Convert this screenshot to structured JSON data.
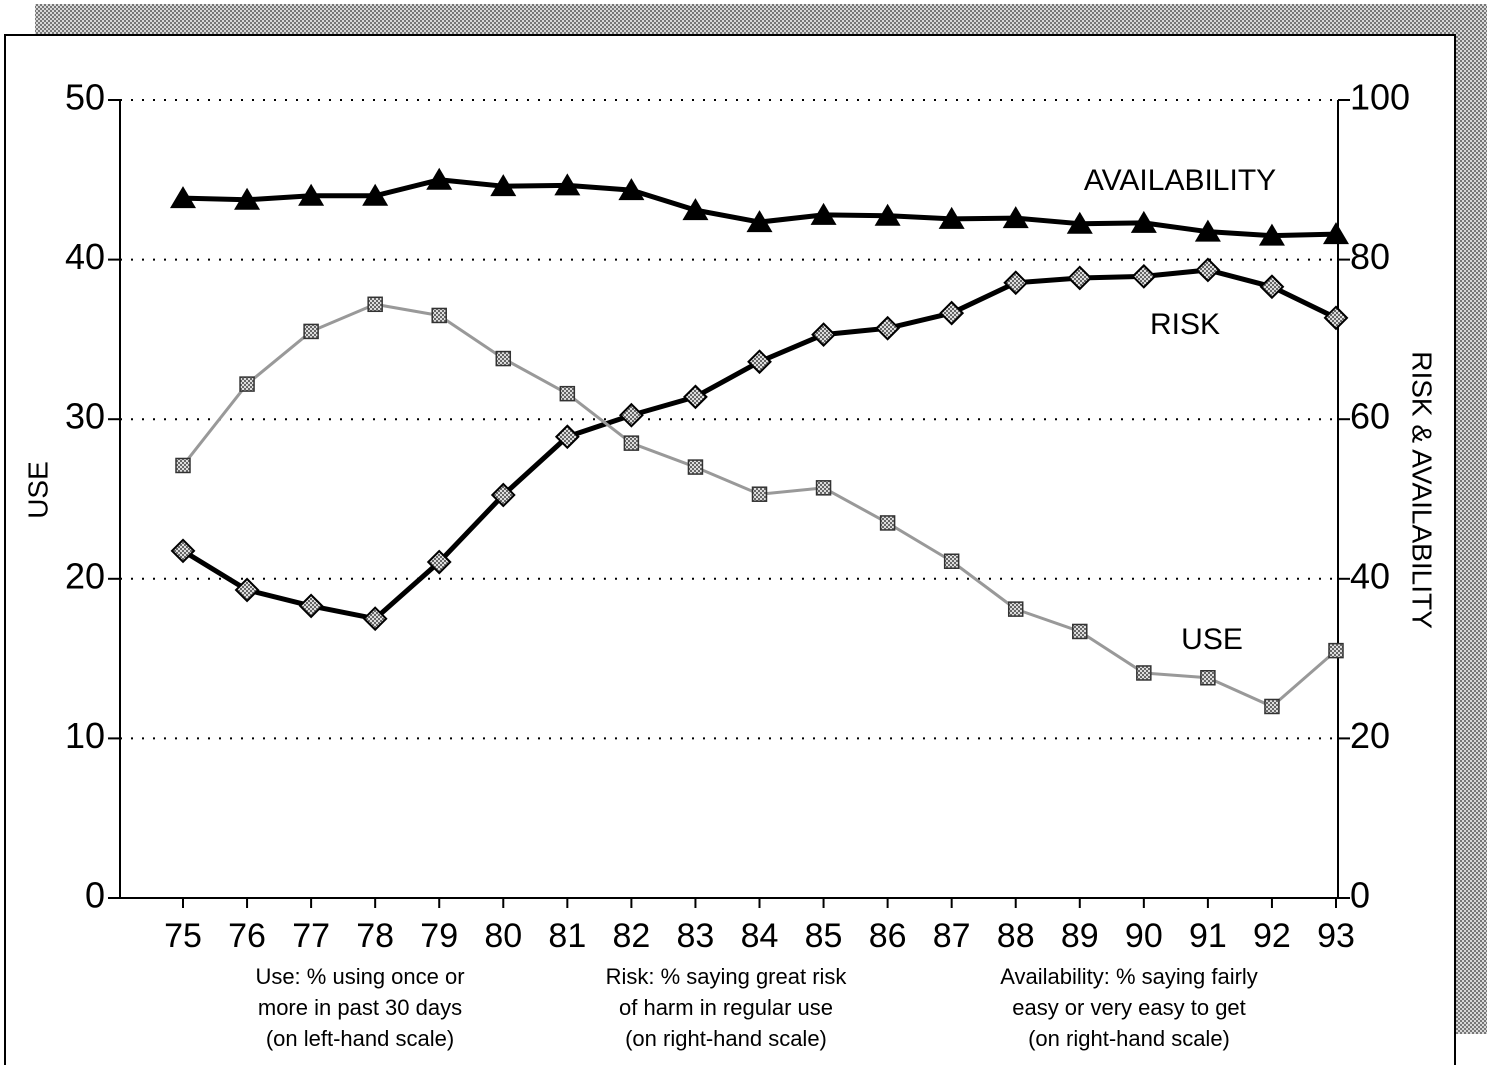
{
  "chart_data": {
    "type": "line",
    "ylabel": "USE",
    "y2label": "RISK & AVAILABILITY",
    "categories": [
      "75",
      "76",
      "77",
      "78",
      "79",
      "80",
      "81",
      "82",
      "83",
      "84",
      "85",
      "86",
      "87",
      "88",
      "89",
      "90",
      "91",
      "92",
      "93"
    ],
    "ylim": [
      0,
      50
    ],
    "yticks": [
      0,
      10,
      20,
      30,
      40,
      50
    ],
    "y2lim": [
      0,
      100
    ],
    "y2ticks": [
      0,
      20,
      40,
      60,
      80,
      100
    ],
    "grid": true,
    "series": [
      {
        "name": "AVAILABILITY",
        "color": "#000000",
        "marker": "triangle",
        "axis": "y2",
        "values": [
          87.7,
          87.5,
          88.0,
          88.0,
          90.0,
          89.2,
          89.3,
          88.7,
          86.2,
          84.7,
          85.6,
          85.5,
          85.1,
          85.2,
          84.5,
          84.6,
          83.5,
          83.0,
          83.2
        ]
      },
      {
        "name": "RISK",
        "color": "#000000",
        "marker": "diamond",
        "axis": "y2",
        "values": [
          43.5,
          38.6,
          36.6,
          35.0,
          42.1,
          50.5,
          57.8,
          60.5,
          62.8,
          67.2,
          70.6,
          71.4,
          73.3,
          77.1,
          77.7,
          77.9,
          78.7,
          76.6,
          72.7
        ]
      },
      {
        "name": "USE",
        "color": "#999999",
        "marker": "square",
        "axis": "y",
        "values": [
          27.1,
          32.2,
          35.5,
          37.2,
          36.5,
          33.8,
          31.6,
          28.5,
          27.0,
          25.3,
          25.7,
          23.5,
          21.1,
          18.1,
          16.7,
          14.1,
          13.8,
          12.0,
          15.5
        ]
      }
    ],
    "notes": [
      [
        "Use:  % using once or",
        "more in past 30 days",
        "(on left-hand scale)"
      ],
      [
        "Risk:  % saying great risk",
        "of harm in regular use",
        "(on right-hand scale)"
      ],
      [
        "Availability:  % saying fairly",
        "easy or very easy to get",
        "(on right-hand scale)"
      ]
    ]
  }
}
